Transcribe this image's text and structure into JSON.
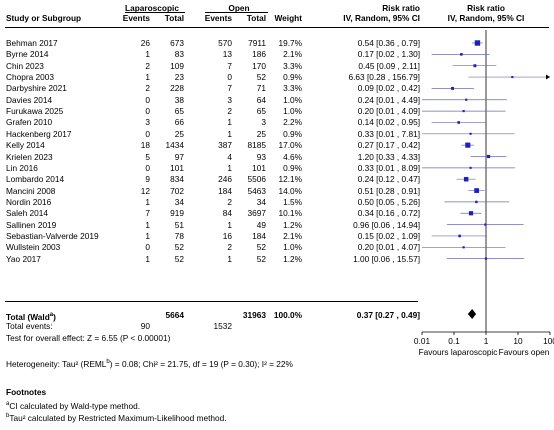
{
  "header": {
    "group1": "Laparoscopic",
    "group2": "Open",
    "col_study": "Study or Subgroup",
    "col_events": "Events",
    "col_total": "Total",
    "col_weight": "Weight",
    "effect_title": "Risk ratio",
    "effect_method": "IV, Random, 95% CI"
  },
  "rows": [
    {
      "study": "Behman 2017",
      "e1": "26",
      "t1": "673",
      "e2": "570",
      "t2": "7911",
      "weight": "19.7%",
      "ci": "0.54 [0.36 , 0.79]"
    },
    {
      "study": "Byrne 2014",
      "e1": "1",
      "t1": "83",
      "e2": "13",
      "t2": "186",
      "weight": "2.1%",
      "ci": "0.17 [0.02 , 1.30]"
    },
    {
      "study": "Chin 2023",
      "e1": "2",
      "t1": "109",
      "e2": "7",
      "t2": "170",
      "weight": "3.3%",
      "ci": "0.45 [0.09 , 2.11]"
    },
    {
      "study": "Chopra 2003",
      "e1": "1",
      "t1": "23",
      "e2": "0",
      "t2": "52",
      "weight": "0.9%",
      "ci": "6.63 [0.28 , 156.79]"
    },
    {
      "study": "Darbyshire 2021",
      "e1": "2",
      "t1": "228",
      "e2": "7",
      "t2": "71",
      "weight": "3.3%",
      "ci": "0.09 [0.02 , 0.42]"
    },
    {
      "study": "Davies 2014",
      "e1": "0",
      "t1": "38",
      "e2": "3",
      "t2": "64",
      "weight": "1.0%",
      "ci": "0.24 [0.01 , 4.49]"
    },
    {
      "study": "Furukawa 2025",
      "e1": "0",
      "t1": "65",
      "e2": "2",
      "t2": "65",
      "weight": "1.0%",
      "ci": "0.20 [0.01 , 4.09]"
    },
    {
      "study": "Grafen 2010",
      "e1": "3",
      "t1": "66",
      "e2": "1",
      "t2": "3",
      "weight": "2.2%",
      "ci": "0.14 [0.02 , 0.95]"
    },
    {
      "study": "Hackenberg 2017",
      "e1": "0",
      "t1": "25",
      "e2": "1",
      "t2": "25",
      "weight": "0.9%",
      "ci": "0.33 [0.01 , 7.81]"
    },
    {
      "study": "Kelly 2014",
      "e1": "18",
      "t1": "1434",
      "e2": "387",
      "t2": "8185",
      "weight": "17.0%",
      "ci": "0.27 [0.17 , 0.42]"
    },
    {
      "study": "Krielen 2023",
      "e1": "5",
      "t1": "97",
      "e2": "4",
      "t2": "93",
      "weight": "4.6%",
      "ci": "1.20 [0.33 , 4.33]"
    },
    {
      "study": "Lin 2016",
      "e1": "0",
      "t1": "101",
      "e2": "1",
      "t2": "101",
      "weight": "0.9%",
      "ci": "0.33 [0.01 , 8.09]"
    },
    {
      "study": "Lombardo 2014",
      "e1": "9",
      "t1": "834",
      "e2": "246",
      "t2": "5506",
      "weight": "12.1%",
      "ci": "0.24 [0.12 , 0.47]"
    },
    {
      "study": "Mancini 2008",
      "e1": "12",
      "t1": "702",
      "e2": "184",
      "t2": "5463",
      "weight": "14.0%",
      "ci": "0.51 [0.28 , 0.91]"
    },
    {
      "study": "Nordin 2016",
      "e1": "1",
      "t1": "34",
      "e2": "2",
      "t2": "34",
      "weight": "1.5%",
      "ci": "0.50 [0.05 , 5.26]"
    },
    {
      "study": "Saleh 2014",
      "e1": "7",
      "t1": "919",
      "e2": "84",
      "t2": "3697",
      "weight": "10.1%",
      "ci": "0.34 [0.16 , 0.72]"
    },
    {
      "study": "Sallinen 2019",
      "e1": "1",
      "t1": "51",
      "e2": "1",
      "t2": "49",
      "weight": "1.2%",
      "ci": "0.96 [0.06 , 14.94]"
    },
    {
      "study": "Sebastian-Valverde 2019",
      "e1": "1",
      "t1": "78",
      "e2": "16",
      "t2": "184",
      "weight": "2.1%",
      "ci": "0.15 [0.02 , 1.09]"
    },
    {
      "study": "Wullstein 2003",
      "e1": "0",
      "t1": "52",
      "e2": "2",
      "t2": "52",
      "weight": "1.0%",
      "ci": "0.20 [0.01 , 4.07]"
    },
    {
      "study": "Yao 2017",
      "e1": "1",
      "t1": "52",
      "e2": "1",
      "t2": "52",
      "weight": "1.2%",
      "ci": "1.00 [0.06 , 15.57]"
    }
  ],
  "total": {
    "label": "Total (Wald",
    "label_sup": "a",
    "label_end": ")",
    "t1": "5664",
    "t2": "31963",
    "weight": "100.0%",
    "ci": "0.37 [0.27 , 0.49]",
    "events_label": "Total events:",
    "e1": "90",
    "e2": "1532"
  },
  "overall_test": "Test for overall effect: Z = 6.55 (P < 0.00001)",
  "heterogeneity": {
    "pre": "Heterogeneity: Tau² (REML",
    "sup": "b",
    "post": ") = 0.08; Chi² = 21.75, df = 19 (P = 0.30); I² = 22%"
  },
  "footnotes": {
    "title": "Footnotes",
    "a_mark": "a",
    "a_text": "CI calculated by Wald-type method.",
    "b_mark": "b",
    "b_text": "Tau² calculated by Restricted Maximum-Likelihood method."
  },
  "axis": {
    "ticks": [
      "0.01",
      "0.1",
      "1",
      "10",
      "100"
    ],
    "favours_left": "Favours laparoscopic",
    "favours_right": "Favours open"
  },
  "colors": {
    "marker": "#1f1fbf",
    "ci_line": "#6b6bb8",
    "diamond": "#000000"
  },
  "chart_data": {
    "type": "forest",
    "scale": "log",
    "xlim": [
      0.01,
      100
    ],
    "null_value": 1,
    "studies": [
      {
        "name": "Behman 2017",
        "rr": 0.54,
        "lo": 0.36,
        "hi": 0.79,
        "weight": 19.7
      },
      {
        "name": "Byrne 2014",
        "rr": 0.17,
        "lo": 0.02,
        "hi": 1.3,
        "weight": 2.1
      },
      {
        "name": "Chin 2023",
        "rr": 0.45,
        "lo": 0.09,
        "hi": 2.11,
        "weight": 3.3
      },
      {
        "name": "Chopra 2003",
        "rr": 6.63,
        "lo": 0.28,
        "hi": 156.79,
        "weight": 0.9
      },
      {
        "name": "Darbyshire 2021",
        "rr": 0.09,
        "lo": 0.02,
        "hi": 0.42,
        "weight": 3.3
      },
      {
        "name": "Davies 2014",
        "rr": 0.24,
        "lo": 0.01,
        "hi": 4.49,
        "weight": 1.0
      },
      {
        "name": "Furukawa 2025",
        "rr": 0.2,
        "lo": 0.01,
        "hi": 4.09,
        "weight": 1.0
      },
      {
        "name": "Grafen 2010",
        "rr": 0.14,
        "lo": 0.02,
        "hi": 0.95,
        "weight": 2.2
      },
      {
        "name": "Hackenberg 2017",
        "rr": 0.33,
        "lo": 0.01,
        "hi": 7.81,
        "weight": 0.9
      },
      {
        "name": "Kelly 2014",
        "rr": 0.27,
        "lo": 0.17,
        "hi": 0.42,
        "weight": 17.0
      },
      {
        "name": "Krielen 2023",
        "rr": 1.2,
        "lo": 0.33,
        "hi": 4.33,
        "weight": 4.6
      },
      {
        "name": "Lin 2016",
        "rr": 0.33,
        "lo": 0.01,
        "hi": 8.09,
        "weight": 0.9
      },
      {
        "name": "Lombardo 2014",
        "rr": 0.24,
        "lo": 0.12,
        "hi": 0.47,
        "weight": 12.1
      },
      {
        "name": "Mancini 2008",
        "rr": 0.51,
        "lo": 0.28,
        "hi": 0.91,
        "weight": 14.0
      },
      {
        "name": "Nordin 2016",
        "rr": 0.5,
        "lo": 0.05,
        "hi": 5.26,
        "weight": 1.5
      },
      {
        "name": "Saleh 2014",
        "rr": 0.34,
        "lo": 0.16,
        "hi": 0.72,
        "weight": 10.1
      },
      {
        "name": "Sallinen 2019",
        "rr": 0.96,
        "lo": 0.06,
        "hi": 14.94,
        "weight": 1.2
      },
      {
        "name": "Sebastian-Valverde 2019",
        "rr": 0.15,
        "lo": 0.02,
        "hi": 1.09,
        "weight": 2.1
      },
      {
        "name": "Wullstein 2003",
        "rr": 0.2,
        "lo": 0.01,
        "hi": 4.07,
        "weight": 1.0
      },
      {
        "name": "Yao 2017",
        "rr": 1.0,
        "lo": 0.06,
        "hi": 15.57,
        "weight": 1.2
      }
    ],
    "pooled": {
      "rr": 0.37,
      "lo": 0.27,
      "hi": 0.49
    }
  }
}
